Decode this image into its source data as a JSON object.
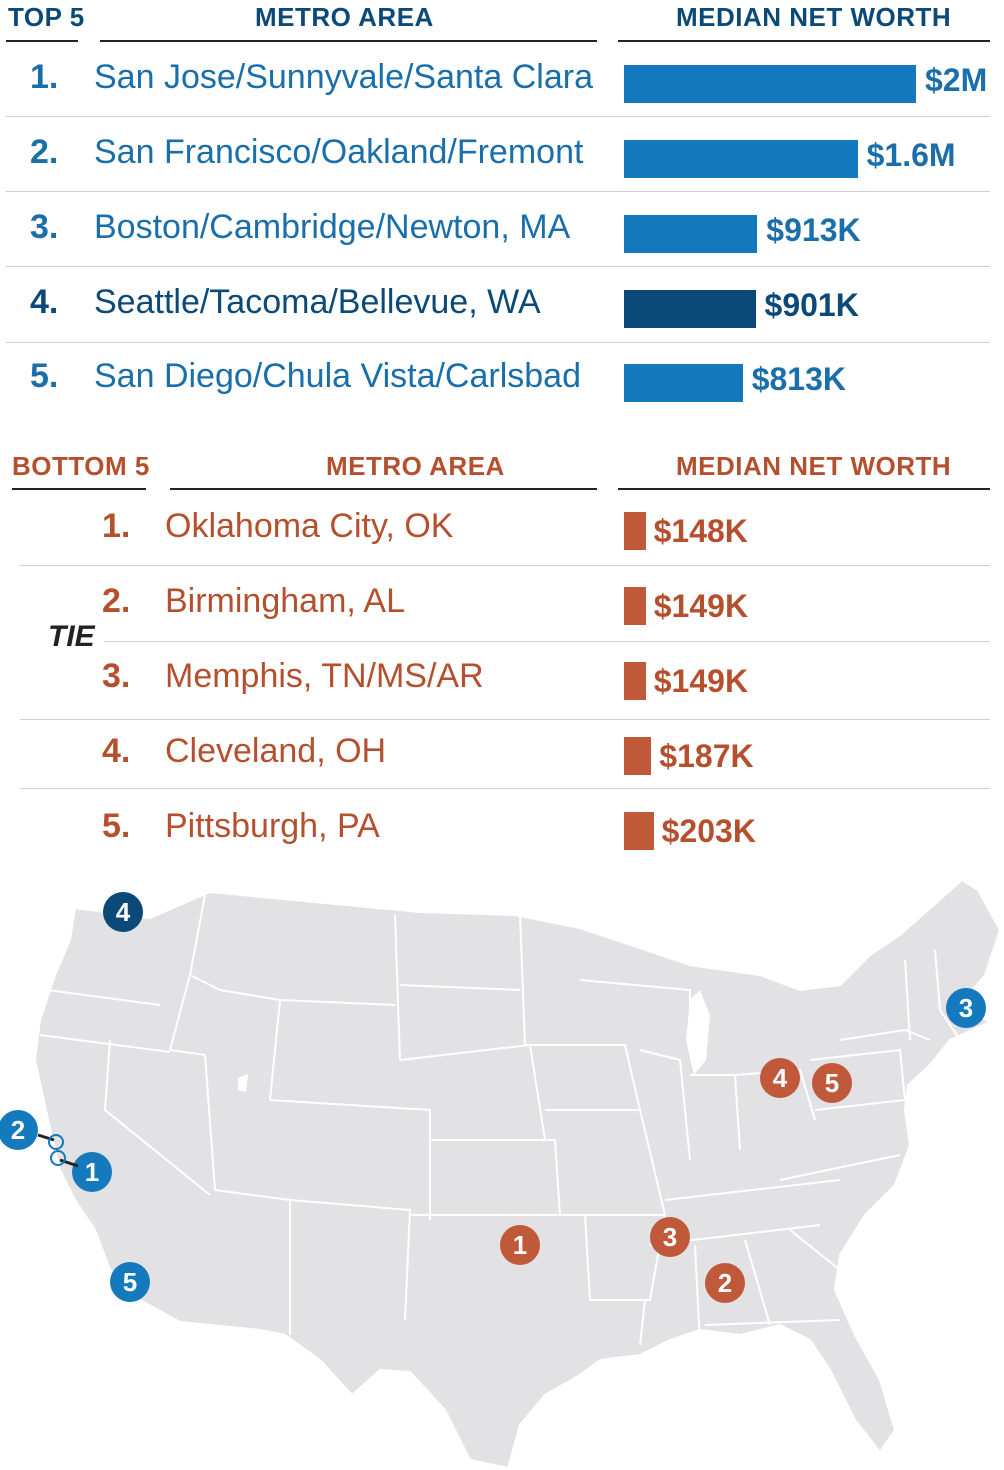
{
  "colors": {
    "top": "#1479bd",
    "top_highlight": "#0b4a78",
    "top_text": "#1a6fab",
    "bottom": "#c0583a",
    "bottom_text": "#b5502f",
    "map_fill": "#e2e2e4",
    "map_border": "#ffffff"
  },
  "top_table": {
    "label": "TOP 5",
    "metro_header": "METRO AREA",
    "value_header": "MEDIAN NET WORTH"
  },
  "bottom_table": {
    "label": "BOTTOM 5",
    "metro_header": "METRO AREA",
    "value_header": "MEDIAN NET WORTH",
    "tie_label": "TIE"
  },
  "chart_data": [
    {
      "type": "bar",
      "title": "TOP 5",
      "categories": [
        "San Jose/Sunnyvale/Santa Clara",
        "San Francisco/Oakland/Fremont",
        "Boston/Cambridge/Newton, MA",
        "Seattle/Tacoma/Bellevue, WA",
        "San Diego/Chula Vista/Carlsbad"
      ],
      "ranks": [
        "1.",
        "2.",
        "3.",
        "4.",
        "5."
      ],
      "values": [
        2000000,
        1600000,
        913000,
        901000,
        813000
      ],
      "labels": [
        "$2M",
        "$1.6M",
        "$913K",
        "$901K",
        "$813K"
      ],
      "highlight_index": 3
    },
    {
      "type": "bar",
      "title": "BOTTOM 5",
      "categories": [
        "Oklahoma City, OK",
        "Birmingham, AL",
        "Memphis, TN/MS/AR",
        "Cleveland, OH",
        "Pittsburgh, PA"
      ],
      "ranks": [
        "1.",
        "2.",
        "3.",
        "4.",
        "5."
      ],
      "values": [
        148000,
        149000,
        149000,
        187000,
        203000
      ],
      "labels": [
        "$148K",
        "$149K",
        "$149K",
        "$187K",
        "$203K"
      ]
    }
  ],
  "map": {
    "markers": [
      {
        "label": "4",
        "group": "top_highlight",
        "place": "Seattle"
      },
      {
        "label": "2",
        "group": "top",
        "place": "San Francisco"
      },
      {
        "label": "1",
        "group": "top",
        "place": "San Jose"
      },
      {
        "label": "5",
        "group": "top",
        "place": "San Diego"
      },
      {
        "label": "3",
        "group": "top",
        "place": "Boston"
      },
      {
        "label": "1",
        "group": "bottom",
        "place": "Oklahoma City"
      },
      {
        "label": "3",
        "group": "bottom",
        "place": "Memphis"
      },
      {
        "label": "2",
        "group": "bottom",
        "place": "Birmingham"
      },
      {
        "label": "4",
        "group": "bottom",
        "place": "Cleveland"
      },
      {
        "label": "5",
        "group": "bottom",
        "place": "Pittsburgh"
      }
    ]
  }
}
